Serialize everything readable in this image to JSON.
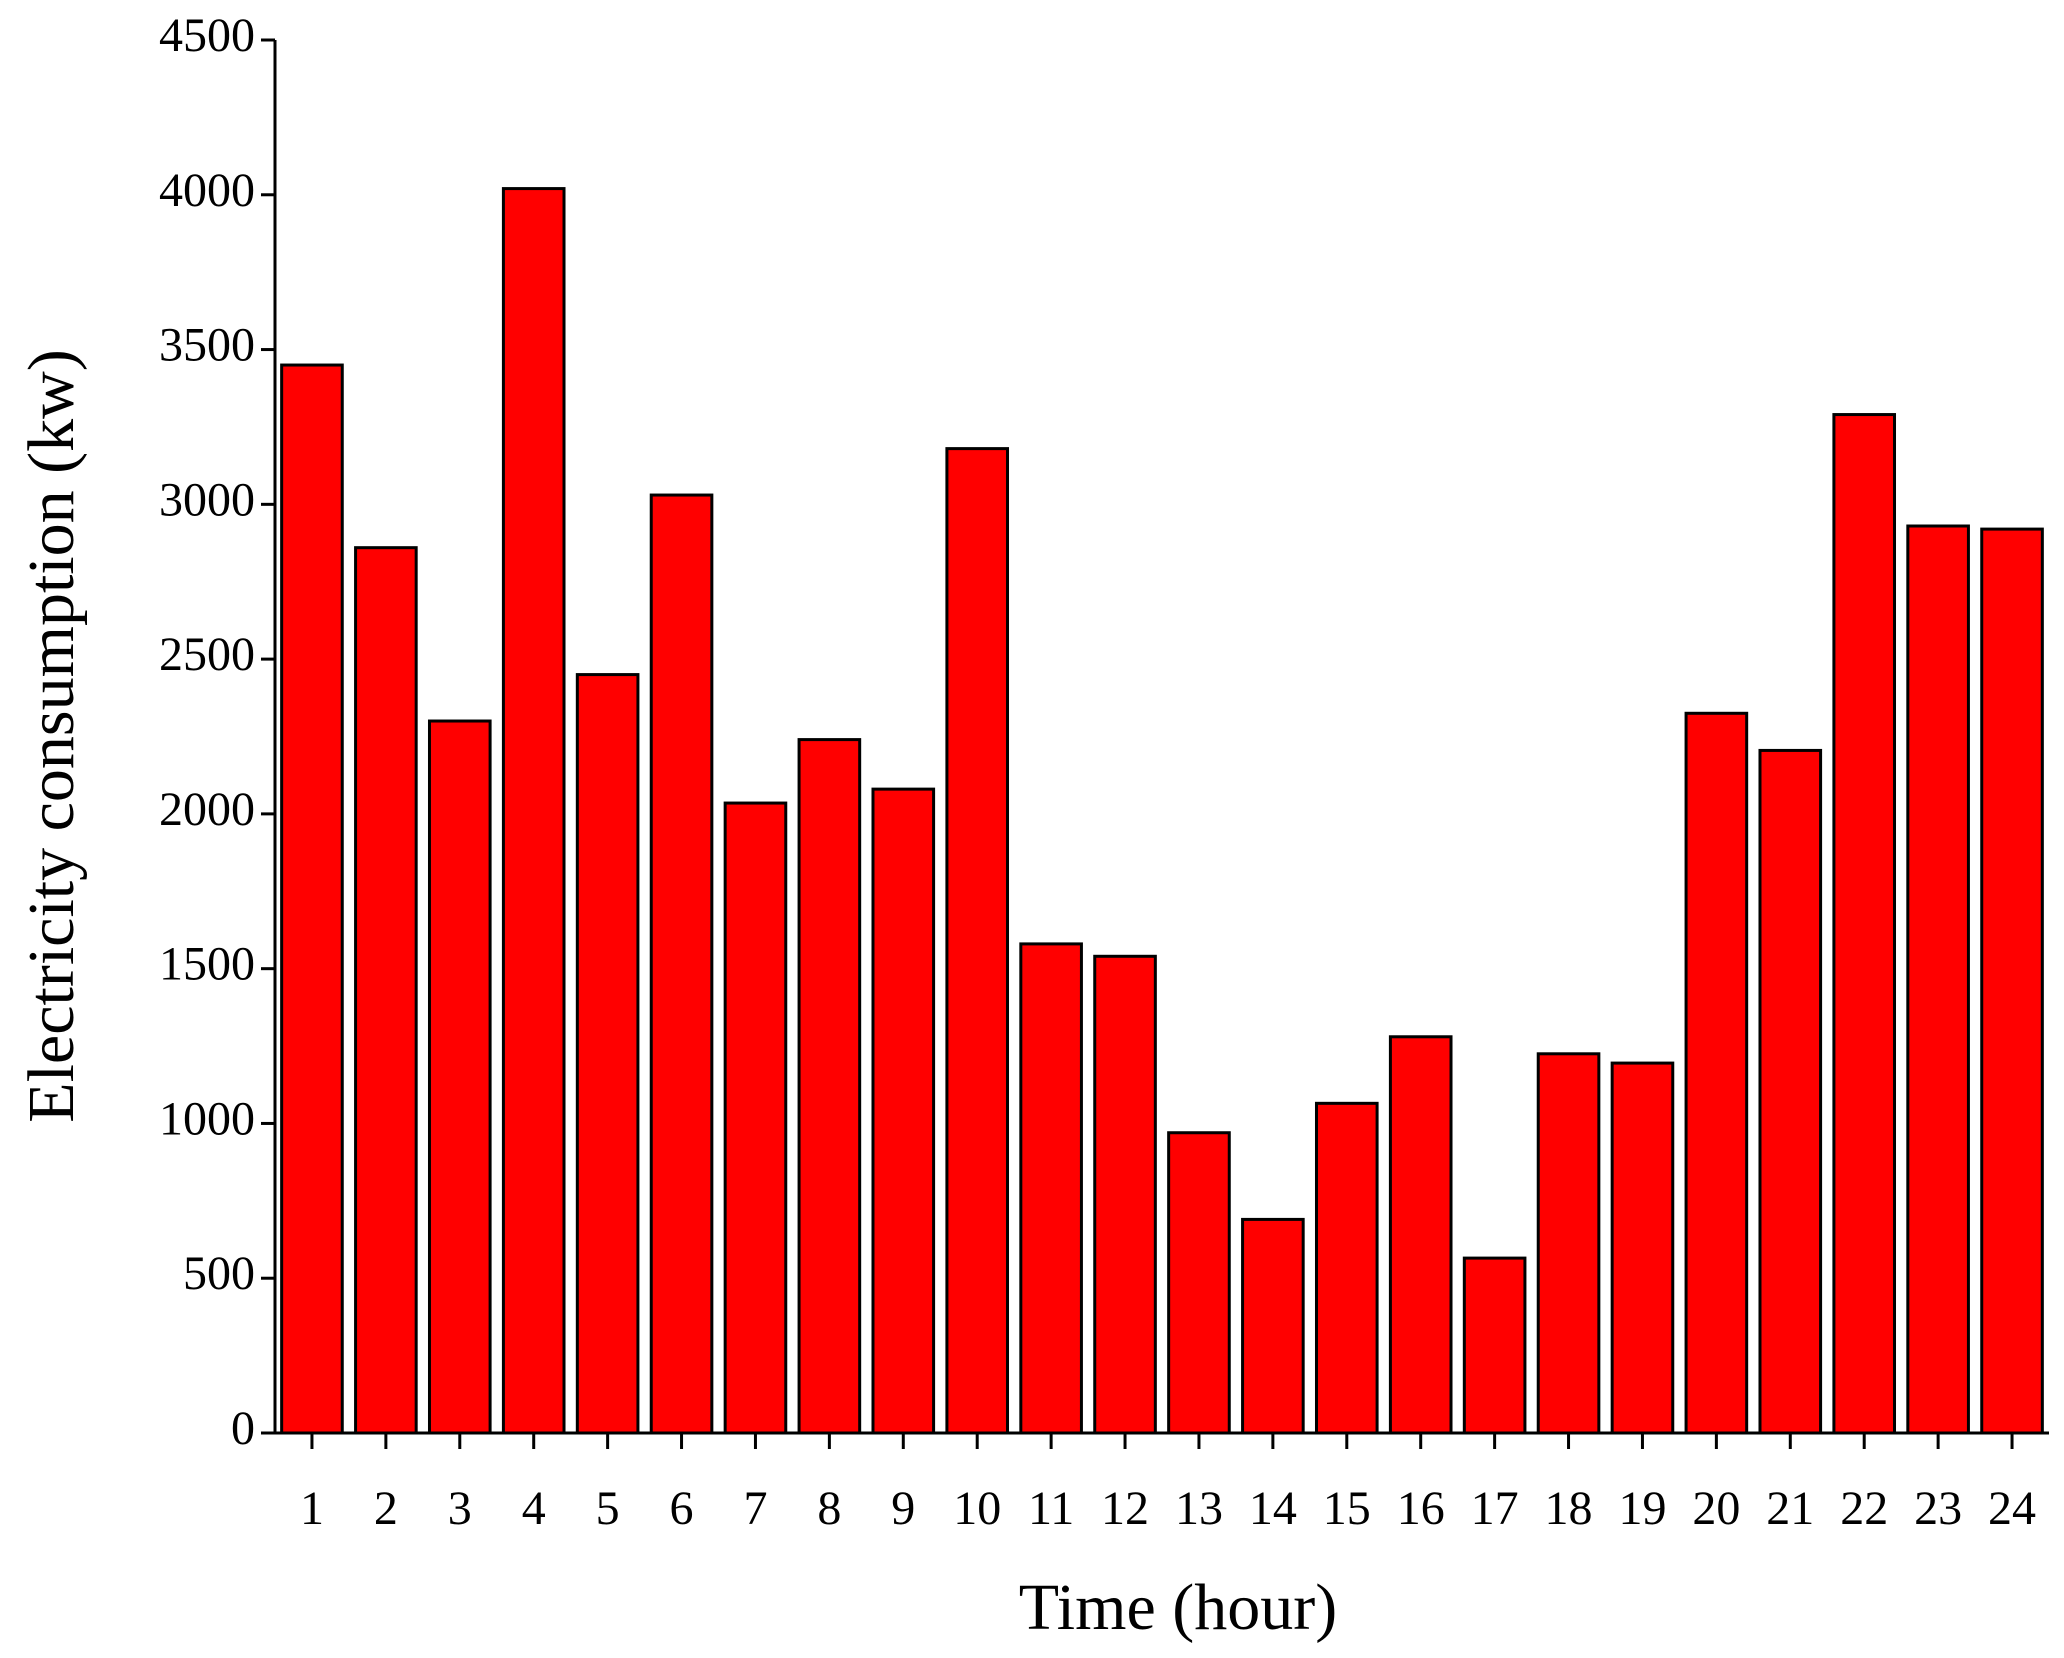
{
  "chart_data": {
    "type": "bar",
    "x_label": "Time (hour)",
    "y_label": "Electricity consumption (kw)",
    "categories": [
      "1",
      "2",
      "3",
      "4",
      "5",
      "6",
      "7",
      "8",
      "9",
      "10",
      "11",
      "12",
      "13",
      "14",
      "15",
      "16",
      "17",
      "18",
      "19",
      "20",
      "21",
      "22",
      "23",
      "24"
    ],
    "values": [
      3450,
      2860,
      2300,
      4020,
      2450,
      3030,
      2035,
      2240,
      2080,
      3180,
      1580,
      1540,
      970,
      690,
      1065,
      1280,
      565,
      1225,
      1195,
      2325,
      2205,
      3290,
      2930,
      2920
    ],
    "color": "#ff0000",
    "ylim": [
      0,
      4500
    ],
    "yticks": [
      0,
      500,
      1000,
      1500,
      2000,
      2500,
      3000,
      3500,
      4000,
      4500
    ],
    "grid": false
  }
}
